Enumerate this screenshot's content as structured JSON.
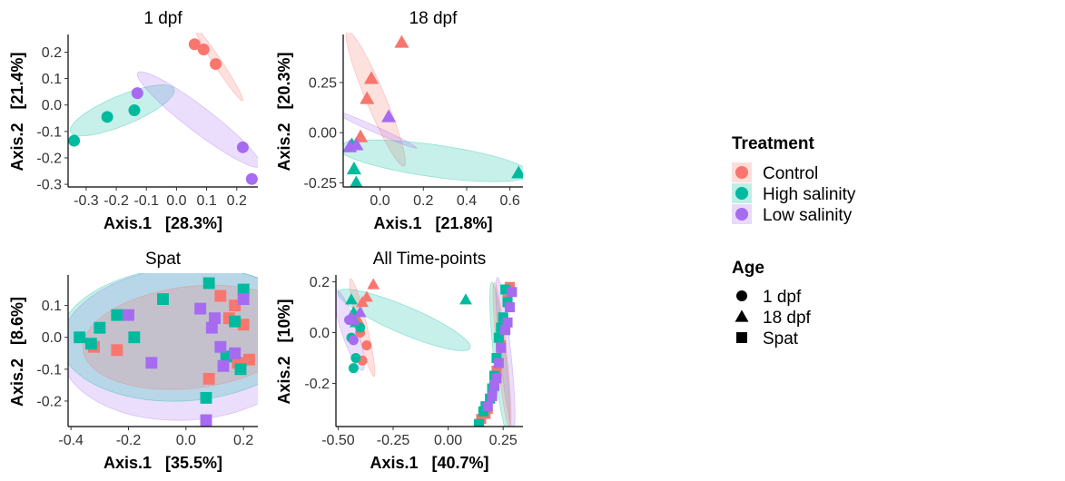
{
  "colors": {
    "Control": "#F8766D",
    "High salinity": "#00BA9F",
    "Low salinity": "#A66BF0"
  },
  "legend": {
    "treatment_title": "Treatment",
    "treatment_items": [
      "Control",
      "High salinity",
      "Low salinity"
    ],
    "age_title": "Age",
    "age_items": [
      {
        "label": "1 dpf",
        "shape": "circle"
      },
      {
        "label": "18 dpf",
        "shape": "triangle"
      },
      {
        "label": "Spat",
        "shape": "square"
      }
    ]
  },
  "chart_data": [
    {
      "type": "scatter",
      "title": "1 dpf",
      "xlabel": "Axis.1   [28.3%]",
      "ylabel": "Axis.2   [21.4%]",
      "xlim": [
        -0.36,
        0.27
      ],
      "ylim": [
        -0.31,
        0.26
      ],
      "xticks": [
        -0.3,
        -0.2,
        -0.1,
        0.0,
        0.1,
        0.2
      ],
      "xticklabels": [
        "-0.3",
        "-0.2",
        "-0.1",
        "0.0",
        "0.1",
        "0.2"
      ],
      "yticks": [
        -0.3,
        -0.2,
        -0.1,
        0.0,
        0.1,
        0.2
      ],
      "yticklabels": [
        "-0.3",
        "-0.2",
        "-0.1",
        "0.0",
        "0.1",
        "0.2"
      ],
      "ellipses": [
        {
          "group": "Control",
          "cx": 0.14,
          "cy": 0.155,
          "rx": 0.16,
          "ry": 0.014,
          "angle": -1.05
        },
        {
          "group": "High salinity",
          "cx": -0.18,
          "cy": -0.02,
          "rx": 0.19,
          "ry": 0.055,
          "angle": 0.45
        },
        {
          "group": "Low salinity",
          "cx": 0.075,
          "cy": -0.055,
          "rx": 0.27,
          "ry": 0.045,
          "angle": -0.72
        }
      ],
      "series": [
        {
          "name": "Control",
          "shape": "circle",
          "x": [
            0.06,
            0.09,
            0.13
          ],
          "y": [
            0.23,
            0.21,
            0.155
          ]
        },
        {
          "name": "High salinity",
          "shape": "circle",
          "x": [
            -0.34,
            -0.23,
            -0.14
          ],
          "y": [
            -0.135,
            -0.045,
            -0.02
          ]
        },
        {
          "name": "Low salinity",
          "shape": "circle",
          "x": [
            -0.13,
            0.22,
            0.25
          ],
          "y": [
            0.045,
            -0.16,
            -0.28
          ]
        }
      ]
    },
    {
      "type": "scatter",
      "title": "18 dpf",
      "xlabel": "Axis.1   [21.8%]",
      "ylabel": "Axis.2   [20.3%]",
      "xlim": [
        -0.17,
        0.66
      ],
      "ylim": [
        -0.27,
        0.48
      ],
      "xticks": [
        0.0,
        0.2,
        0.4,
        0.6
      ],
      "xticklabels": [
        "0.0",
        "0.2",
        "0.4",
        "0.6"
      ],
      "yticks": [
        -0.25,
        0.0,
        0.25
      ],
      "yticklabels": [
        "-0.25",
        "0.00",
        "0.25"
      ],
      "ellipses": [
        {
          "group": "Control",
          "cx": -0.02,
          "cy": 0.17,
          "rx": 0.36,
          "ry": 0.045,
          "angle": -1.2
        },
        {
          "group": "High salinity",
          "cx": 0.25,
          "cy": -0.14,
          "rx": 0.45,
          "ry": 0.08,
          "angle": -0.15
        },
        {
          "group": "Low salinity",
          "cx": -0.03,
          "cy": 0.02,
          "rx": 0.22,
          "ry": 0.015,
          "angle": -0.45
        }
      ],
      "series": [
        {
          "name": "Control",
          "shape": "triangle",
          "x": [
            0.1,
            -0.04,
            -0.06,
            -0.09
          ],
          "y": [
            0.45,
            0.27,
            0.17,
            -0.02
          ]
        },
        {
          "name": "High salinity",
          "shape": "triangle",
          "x": [
            0.64,
            -0.13,
            -0.12,
            -0.11
          ],
          "y": [
            -0.2,
            -0.06,
            -0.18,
            -0.25
          ]
        },
        {
          "name": "Low salinity",
          "shape": "triangle",
          "x": [
            0.04,
            -0.14,
            -0.11
          ],
          "y": [
            0.08,
            -0.07,
            -0.06
          ]
        }
      ]
    },
    {
      "type": "scatter",
      "title": "Spat",
      "xlabel": "Axis.1   [35.5%]",
      "ylabel": "Axis.2   [8.6%]",
      "xlim": [
        -0.41,
        0.25
      ],
      "ylim": [
        -0.28,
        0.19
      ],
      "xticks": [
        -0.4,
        -0.2,
        0.0,
        0.2
      ],
      "xticklabels": [
        "-0.4",
        "-0.2",
        "0.0",
        "0.2"
      ],
      "yticks": [
        -0.2,
        -0.1,
        0.0,
        0.1
      ],
      "yticklabels": [
        "-0.2",
        "-0.1",
        "0.0",
        "0.1"
      ],
      "ellipses": [
        {
          "group": "Low salinity",
          "cx": 0.0,
          "cy": -0.02,
          "rx": 0.44,
          "ry": 0.24,
          "angle": 0.05
        },
        {
          "group": "High salinity",
          "cx": -0.01,
          "cy": 0.01,
          "rx": 0.43,
          "ry": 0.21,
          "angle": 0.05
        },
        {
          "group": "Control",
          "cx": 0.02,
          "cy": 0.0,
          "rx": 0.38,
          "ry": 0.16,
          "angle": 0.1
        }
      ],
      "series": [
        {
          "name": "Control",
          "shape": "square",
          "x": [
            -0.32,
            -0.24,
            0.12,
            0.17,
            0.2,
            0.15,
            0.22,
            0.18,
            0.08
          ],
          "y": [
            -0.03,
            -0.04,
            0.13,
            0.1,
            0.04,
            0.06,
            -0.07,
            -0.08,
            -0.13
          ]
        },
        {
          "name": "High salinity",
          "shape": "square",
          "x": [
            -0.37,
            -0.33,
            -0.3,
            -0.24,
            -0.18,
            -0.08,
            0.08,
            0.2,
            0.17,
            0.14,
            0.19,
            0.07
          ],
          "y": [
            0.0,
            -0.02,
            0.03,
            0.07,
            0.0,
            0.12,
            0.17,
            0.15,
            0.05,
            -0.06,
            -0.1,
            -0.19
          ]
        },
        {
          "name": "Low salinity",
          "shape": "square",
          "x": [
            -0.2,
            -0.12,
            0.05,
            0.09,
            0.1,
            0.12,
            0.13,
            0.2,
            0.17,
            0.07
          ],
          "y": [
            0.07,
            -0.08,
            0.09,
            0.03,
            0.06,
            -0.03,
            -0.09,
            0.12,
            -0.05,
            -0.26
          ]
        }
      ]
    },
    {
      "type": "scatter",
      "title": "All Time-points",
      "xlabel": "Axis.1   [40.7%]",
      "ylabel": "Axis.2   [10%]",
      "xlim": [
        -0.51,
        0.34
      ],
      "ylim": [
        -0.37,
        0.22
      ],
      "xticks": [
        -0.5,
        -0.25,
        0.0,
        0.25
      ],
      "xticklabels": [
        "-0.50",
        "-0.25",
        "0.00",
        "0.25"
      ],
      "yticks": [
        -0.2,
        0.0,
        0.2
      ],
      "yticklabels": [
        "-0.2",
        "0.0",
        "0.2"
      ],
      "ellipses": [
        {
          "group": "High salinity",
          "cx": -0.2,
          "cy": 0.05,
          "rx": 0.32,
          "ry": 0.055,
          "angle": -0.35
        },
        {
          "group": "High salinity",
          "cx": 0.235,
          "cy": -0.1,
          "rx": 0.3,
          "ry": 0.028,
          "angle": -1.45
        },
        {
          "group": "Low salinity",
          "cx": -0.45,
          "cy": 0.01,
          "rx": 0.17,
          "ry": 0.035,
          "angle": -1.2
        },
        {
          "group": "Low salinity",
          "cx": 0.26,
          "cy": -0.08,
          "rx": 0.3,
          "ry": 0.025,
          "angle": -1.45
        },
        {
          "group": "Control",
          "cx": -0.39,
          "cy": 0.02,
          "rx": 0.2,
          "ry": 0.022,
          "angle": -1.3
        },
        {
          "group": "Control",
          "cx": 0.245,
          "cy": -0.09,
          "rx": 0.29,
          "ry": 0.022,
          "angle": -1.45
        }
      ],
      "series": [
        {
          "name": "Control",
          "shape": "circle",
          "x": [
            -0.4,
            -0.39,
            -0.37
          ],
          "y": [
            0.0,
            -0.11,
            -0.05
          ]
        },
        {
          "name": "Control",
          "shape": "triangle",
          "x": [
            -0.34,
            -0.37,
            -0.39,
            -0.41
          ],
          "y": [
            0.19,
            0.14,
            0.12,
            0.05
          ]
        },
        {
          "name": "Control",
          "shape": "square",
          "x": [
            0.28,
            0.27,
            0.25,
            0.24,
            0.22,
            0.2,
            0.18,
            0.17,
            0.15
          ],
          "y": [
            0.18,
            0.13,
            0.05,
            -0.05,
            -0.15,
            -0.24,
            -0.3,
            -0.32,
            -0.34
          ]
        },
        {
          "name": "High salinity",
          "shape": "circle",
          "x": [
            -0.42,
            -0.43,
            -0.44,
            -0.4
          ],
          "y": [
            -0.1,
            -0.14,
            -0.02,
            0.02
          ]
        },
        {
          "name": "High salinity",
          "shape": "triangle",
          "x": [
            0.08,
            -0.44,
            -0.43,
            -0.42
          ],
          "y": [
            0.13,
            0.13,
            0.08,
            0.04
          ]
        },
        {
          "name": "High salinity",
          "shape": "square",
          "x": [
            0.26,
            0.27,
            0.25,
            0.24,
            0.23,
            0.22,
            0.21,
            0.2,
            0.19,
            0.17,
            0.16,
            0.14
          ],
          "y": [
            0.17,
            0.12,
            0.06,
            0.02,
            -0.02,
            -0.1,
            -0.17,
            -0.22,
            -0.26,
            -0.29,
            -0.31,
            -0.36
          ]
        },
        {
          "name": "Low salinity",
          "shape": "circle",
          "x": [
            -0.45,
            -0.43
          ],
          "y": [
            0.05,
            -0.03
          ]
        },
        {
          "name": "Low salinity",
          "shape": "triangle",
          "x": [
            -0.4,
            -0.44,
            -0.43
          ],
          "y": [
            0.08,
            0.06,
            0.05
          ]
        },
        {
          "name": "Low salinity",
          "shape": "square",
          "x": [
            0.29,
            0.28,
            0.27,
            0.26,
            0.24,
            0.23,
            0.22,
            0.21,
            0.2,
            0.18
          ],
          "y": [
            0.16,
            0.1,
            0.04,
            0.01,
            -0.06,
            -0.12,
            -0.18,
            -0.21,
            -0.25,
            -0.29
          ]
        }
      ]
    }
  ]
}
